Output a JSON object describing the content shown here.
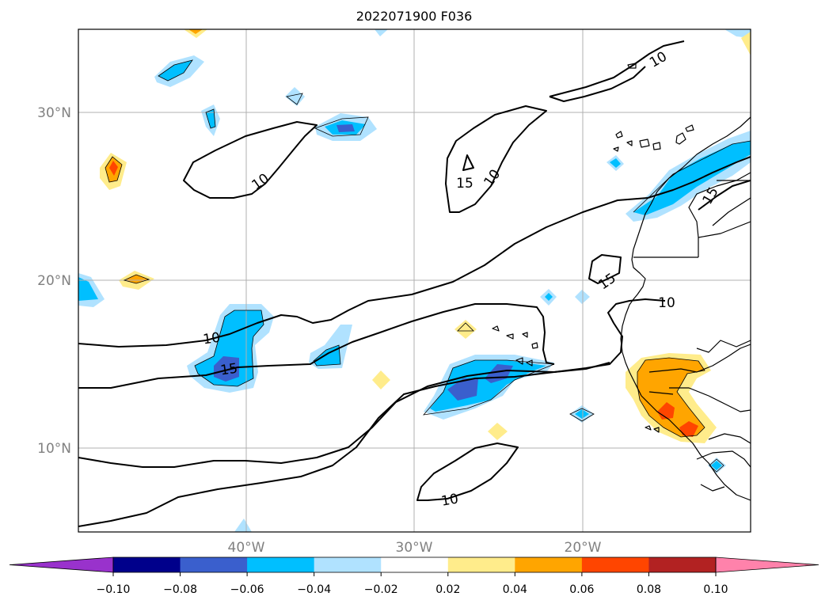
{
  "title": "2022071900 F036",
  "lat_labels": [
    "30°N",
    "20°N",
    "10°N"
  ],
  "lon_labels": [
    "40°W",
    "30°W",
    "20°W"
  ],
  "colorbar": {
    "colors": [
      "#9932cc",
      "#00008b",
      "#3a5fcd",
      "#00bfff",
      "#b0e2ff",
      "#ffffff",
      "#ffec8b",
      "#ffa500",
      "#ff4500",
      "#b22222",
      "#ff82ab"
    ],
    "tick_labels": [
      "−0.10",
      "−0.08",
      "−0.06",
      "−0.04",
      "−0.02",
      "0.02",
      "0.04",
      "0.06",
      "0.08",
      "0.10"
    ]
  },
  "contour_labels": {
    "top_right_10": "10",
    "nw_10": "10",
    "mid_15": "15",
    "mid_10": "10",
    "west_10": "10",
    "west_15": "15",
    "africa_15": "15",
    "coast_10": "10",
    "coast_15_north": "15",
    "south_10": "10"
  },
  "map": {
    "lon_range": [
      "50°W",
      "10°W"
    ],
    "lat_range": [
      "5°N",
      "35°N"
    ],
    "grid": true,
    "shaded_field_colors": {
      "light_blue": "#b0e2ff",
      "blue": "#00bfff",
      "royal_blue": "#3a5fcd",
      "yellow": "#ffec8b",
      "orange": "#ffa500",
      "red_orange": "#ff4500"
    }
  }
}
